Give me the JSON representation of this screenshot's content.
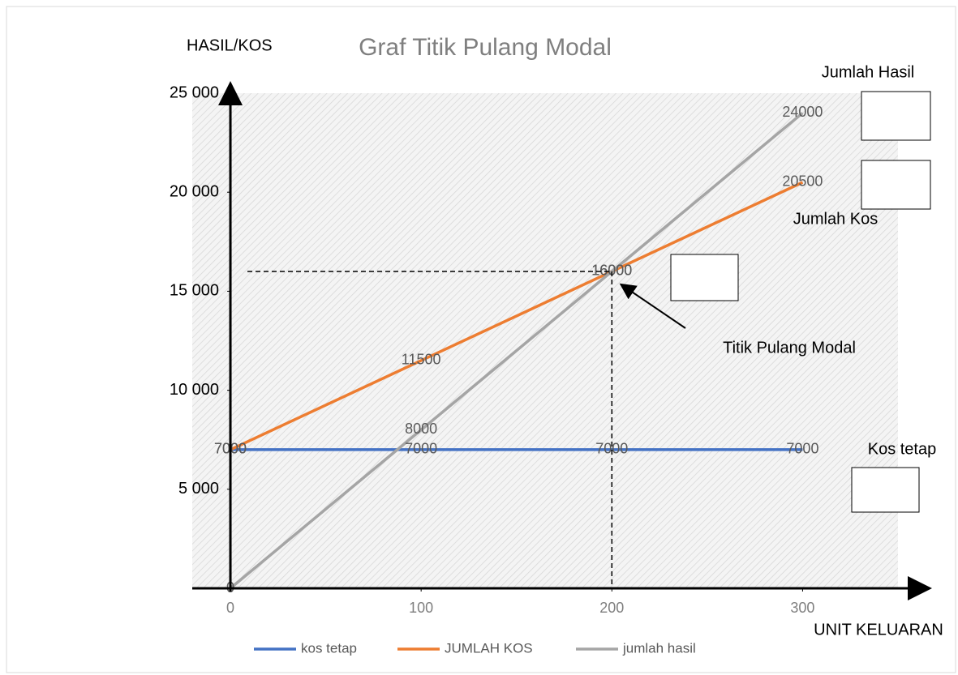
{
  "chart_data": {
    "type": "line",
    "title": "Graf Titik Pulang Modal",
    "x": [
      0,
      100,
      200,
      300
    ],
    "xlim": [
      -20,
      350
    ],
    "xticks": [
      0,
      100,
      200,
      300
    ],
    "ylim": [
      0,
      25000
    ],
    "yticks": [
      {
        "value": 5000,
        "label": "5 000"
      },
      {
        "value": 10000,
        "label": "10 000"
      },
      {
        "value": 15000,
        "label": "15 000"
      },
      {
        "value": 20000,
        "label": "20 000"
      },
      {
        "value": 25000,
        "label": "25 000"
      }
    ],
    "series": [
      {
        "name": "kos tetap",
        "color": "#4472c4",
        "values": [
          7000,
          7000,
          7000,
          7000
        ]
      },
      {
        "name": "JUMLAH KOS",
        "color": "#ed7d31",
        "values": [
          7000,
          11500,
          16000,
          20500
        ]
      },
      {
        "name": "jumlah hasil",
        "color": "#a5a5a5",
        "values": [
          0,
          8000,
          16000,
          24000
        ]
      }
    ],
    "annotations": [
      "HASIL/KOS",
      "UNIT KELUARAN",
      "Jumlah Hasil",
      "Jumlah Kos",
      "Kos tetap",
      "Titik Pulang Modal"
    ],
    "legend": "bottom"
  }
}
